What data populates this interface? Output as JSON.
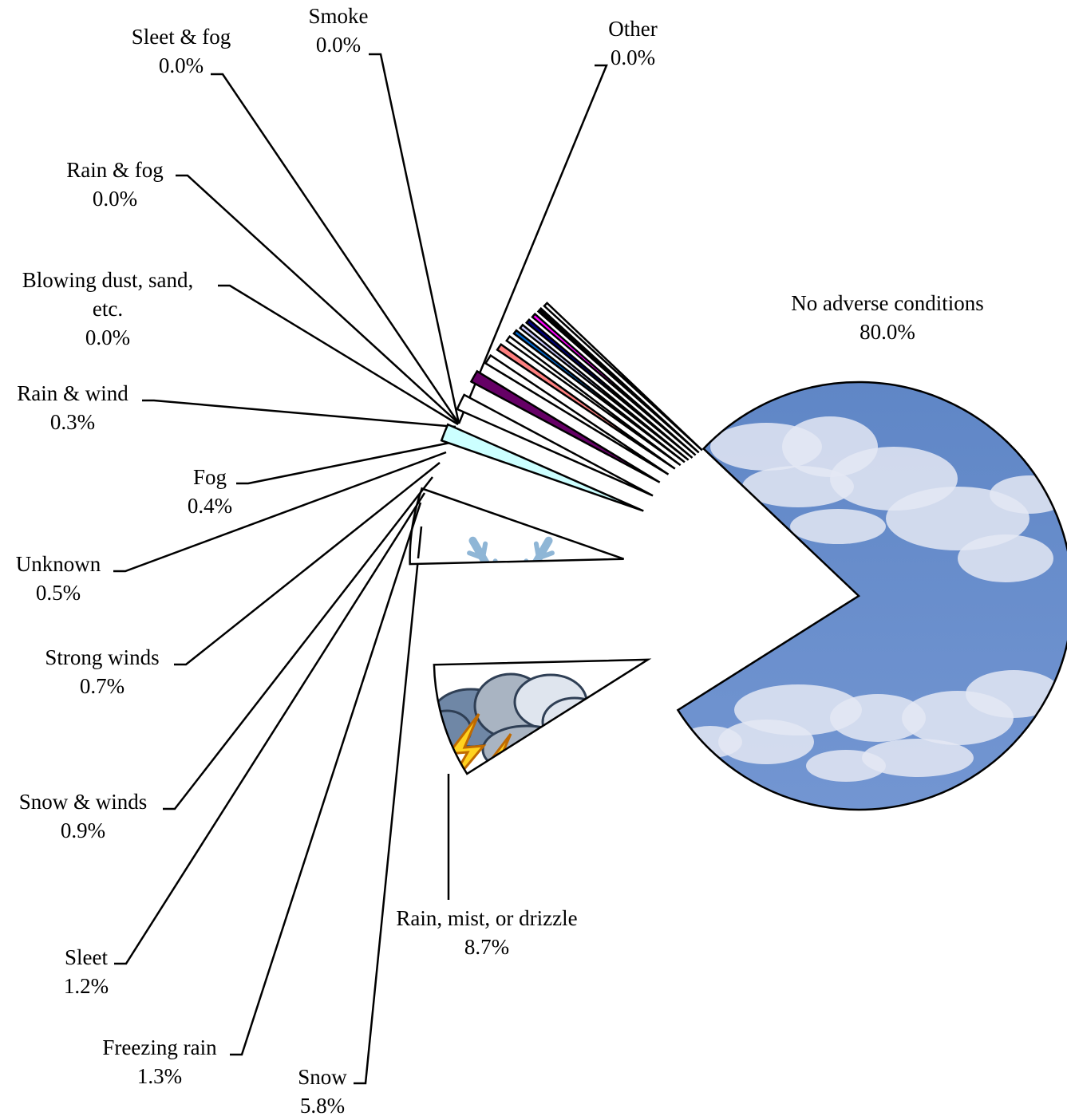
{
  "chart_data": {
    "type": "pie",
    "title": "",
    "slices": [
      {
        "label": "No adverse conditions",
        "value": 80.0,
        "display": "80.0%",
        "fill": "sky-image"
      },
      {
        "label": "Rain, mist, or drizzle",
        "value": 8.7,
        "display": "8.7%",
        "fill": "storm-clouds-image"
      },
      {
        "label": "Snow",
        "value": 5.8,
        "display": "5.8%",
        "fill": "snowflake-image"
      },
      {
        "label": "Freezing rain",
        "value": 1.3,
        "display": "1.3%",
        "color": "#ccffff"
      },
      {
        "label": "Sleet",
        "value": 1.2,
        "display": "1.2%",
        "color": "#ffffff"
      },
      {
        "label": "Snow & winds",
        "value": 0.9,
        "display": "0.9%",
        "color": "#660066"
      },
      {
        "label": "Strong winds",
        "value": 0.7,
        "display": "0.7%",
        "color": "#ffffff"
      },
      {
        "label": "Unknown",
        "value": 0.5,
        "display": "0.5%",
        "color": "#ff8080"
      },
      {
        "label": "Fog",
        "value": 0.4,
        "display": "0.4%",
        "color": "#ffffff"
      },
      {
        "label": "Rain & wind",
        "value": 0.3,
        "display": "0.3%",
        "color": "#0066cc"
      },
      {
        "label": "Blowing dust, sand, etc.",
        "value": 0.0,
        "display": "0.0%",
        "color": "#ccccff"
      },
      {
        "label": "Rain & fog",
        "value": 0.0,
        "display": "0.0%",
        "color": "#000080"
      },
      {
        "label": "Sleet & fog",
        "value": 0.0,
        "display": "0.0%",
        "color": "#ff00ff"
      },
      {
        "label": "Smoke",
        "value": 0.0,
        "display": "0.0%",
        "color": "#000000"
      },
      {
        "label": "Other",
        "value": 0.0,
        "display": "0.0%",
        "color": "#ffffff"
      }
    ],
    "legend": "none"
  }
}
